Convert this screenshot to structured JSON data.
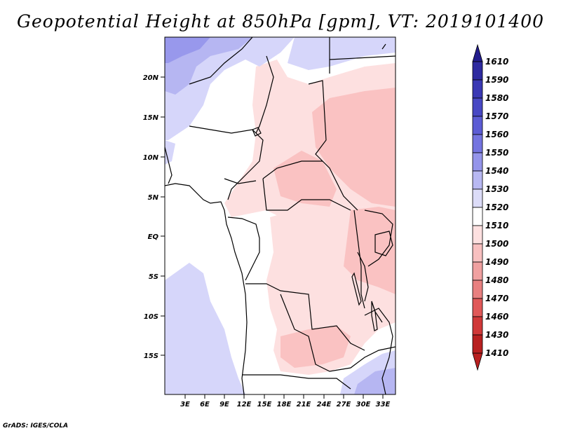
{
  "title": "Geopotential Height at 850hPa [gpm], VT: 2019101400",
  "credit": "GrADS: IGES/COLA",
  "lat_ticks": [
    "20N",
    "15N",
    "10N",
    "5N",
    "EQ",
    "5S",
    "10S",
    "15S"
  ],
  "lon_ticks": [
    "3E",
    "6E",
    "9E",
    "12E",
    "15E",
    "18E",
    "21E",
    "24E",
    "27E",
    "30E",
    "33E"
  ],
  "colorbar": {
    "labels": [
      "1610",
      "1590",
      "1580",
      "1570",
      "1560",
      "1550",
      "1540",
      "1530",
      "1520",
      "1510",
      "1500",
      "1490",
      "1480",
      "1470",
      "1460",
      "1430",
      "1410"
    ],
    "colors": [
      "#221c8c",
      "#2e2aa0",
      "#3a38b4",
      "#4848c4",
      "#5c5cd4",
      "#7474e0",
      "#9494ea",
      "#b8b8f2",
      "#dcdcf8",
      "#ffffff",
      "#fde0e0",
      "#f8c0c0",
      "#f0a0a0",
      "#e88080",
      "#e05858",
      "#d03838",
      "#b82020"
    ]
  },
  "colors": {
    "blue_shade": "#d6d6fa",
    "blue_mid": "#b6b6f2",
    "blue_dark": "#9898ec",
    "pink_shade": "#fde0e0",
    "pink_mid": "#fac2c2",
    "border": "#000000"
  }
}
